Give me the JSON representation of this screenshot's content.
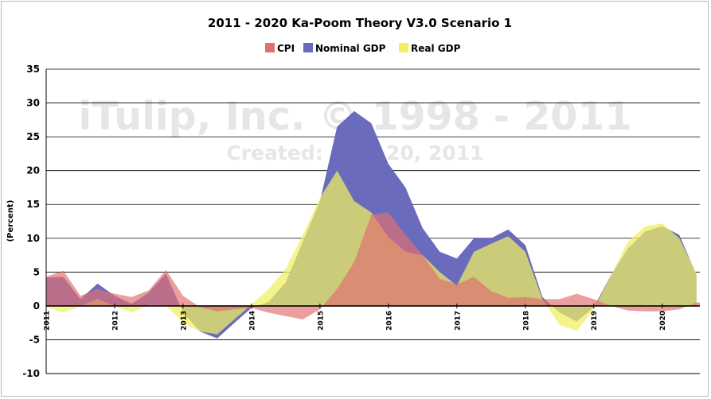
{
  "chart_data": {
    "type": "area",
    "title": "2011 - 2020 Ka-Poom Theory V3.0 Scenario 1",
    "ylabel": "(Percent)",
    "xlabel": "",
    "ylim": [
      -10,
      35
    ],
    "yticks": [
      "35",
      "30",
      "25",
      "20",
      "15",
      "10",
      "5",
      "0",
      "-5",
      "-10"
    ],
    "xlim": [
      2011,
      2020.55
    ],
    "xticks": [
      "2011",
      "2012",
      "2013",
      "2014",
      "2015",
      "2016",
      "2017",
      "2018",
      "2019",
      "2020"
    ],
    "grid": true,
    "legend_position": "top-center",
    "watermark": [
      "iTulip, Inc. © 1998 - 2011",
      "Created: June 20, 2011"
    ],
    "series": [
      {
        "name": "Nominal GDP",
        "color": "#6b6bbd",
        "points": [
          [
            2011.0,
            4.2
          ],
          [
            2011.25,
            4.3
          ],
          [
            2011.5,
            1.0
          ],
          [
            2011.75,
            3.3
          ],
          [
            2012.0,
            1.5
          ],
          [
            2012.25,
            0.3
          ],
          [
            2012.5,
            2.0
          ],
          [
            2012.75,
            4.8
          ],
          [
            2013.0,
            -1.0
          ],
          [
            2013.25,
            -3.8
          ],
          [
            2013.5,
            -4.8
          ],
          [
            2013.75,
            -2.5
          ],
          [
            2014.0,
            -0.3
          ],
          [
            2014.25,
            0.6
          ],
          [
            2014.5,
            3.5
          ],
          [
            2014.75,
            9.5
          ],
          [
            2015.0,
            15.5
          ],
          [
            2015.25,
            26.5
          ],
          [
            2015.5,
            28.8
          ],
          [
            2015.75,
            27.0
          ],
          [
            2016.0,
            21.0
          ],
          [
            2016.25,
            17.5
          ],
          [
            2016.5,
            11.5
          ],
          [
            2016.75,
            8.0
          ],
          [
            2017.0,
            7.0
          ],
          [
            2017.25,
            10.0
          ],
          [
            2017.5,
            10.0
          ],
          [
            2017.75,
            11.3
          ],
          [
            2018.0,
            9.0
          ],
          [
            2018.25,
            1.3
          ],
          [
            2018.5,
            -1.0
          ],
          [
            2018.75,
            -2.3
          ],
          [
            2019.0,
            -0.2
          ],
          [
            2019.25,
            4.5
          ],
          [
            2019.5,
            8.5
          ],
          [
            2019.75,
            11.0
          ],
          [
            2020.0,
            11.8
          ],
          [
            2020.25,
            10.5
          ],
          [
            2020.5,
            4.6
          ]
        ]
      },
      {
        "name": "Real GDP",
        "color": "#f0f060",
        "points": [
          [
            2011.0,
            -0.1
          ],
          [
            2011.25,
            -1.0
          ],
          [
            2011.5,
            0.0
          ],
          [
            2011.75,
            1.0
          ],
          [
            2012.0,
            0.0
          ],
          [
            2012.25,
            -1.0
          ],
          [
            2012.5,
            0.2
          ],
          [
            2012.75,
            0.1
          ],
          [
            2013.0,
            -2.5
          ],
          [
            2013.25,
            -3.8
          ],
          [
            2013.5,
            -4.2
          ],
          [
            2013.75,
            -2.0
          ],
          [
            2014.0,
            0.2
          ],
          [
            2014.25,
            2.5
          ],
          [
            2014.5,
            5.5
          ],
          [
            2014.75,
            10.5
          ],
          [
            2015.0,
            16.0
          ],
          [
            2015.25,
            20.0
          ],
          [
            2015.5,
            15.5
          ],
          [
            2015.75,
            13.8
          ],
          [
            2016.0,
            10.2
          ],
          [
            2016.25,
            8.0
          ],
          [
            2016.5,
            7.5
          ],
          [
            2016.75,
            5.0
          ],
          [
            2017.0,
            3.0
          ],
          [
            2017.25,
            8.0
          ],
          [
            2017.5,
            9.2
          ],
          [
            2017.75,
            10.3
          ],
          [
            2018.0,
            8.0
          ],
          [
            2018.25,
            1.0
          ],
          [
            2018.5,
            -2.8
          ],
          [
            2018.75,
            -3.7
          ],
          [
            2019.0,
            -0.5
          ],
          [
            2019.25,
            4.5
          ],
          [
            2019.5,
            9.5
          ],
          [
            2019.75,
            11.8
          ],
          [
            2020.0,
            12.2
          ],
          [
            2020.25,
            10.0
          ],
          [
            2020.5,
            4.8
          ]
        ]
      },
      {
        "name": "CPI",
        "color": "#e07070",
        "points": [
          [
            2011.0,
            4.3
          ],
          [
            2011.25,
            5.2
          ],
          [
            2011.5,
            1.5
          ],
          [
            2011.75,
            2.5
          ],
          [
            2012.0,
            1.8
          ],
          [
            2012.25,
            1.3
          ],
          [
            2012.5,
            2.3
          ],
          [
            2012.75,
            5.3
          ],
          [
            2013.0,
            1.5
          ],
          [
            2013.25,
            -0.2
          ],
          [
            2013.5,
            -0.8
          ],
          [
            2013.75,
            -0.5
          ],
          [
            2014.0,
            -0.3
          ],
          [
            2014.25,
            -1.0
          ],
          [
            2014.5,
            -1.5
          ],
          [
            2014.75,
            -2.0
          ],
          [
            2015.0,
            -0.5
          ],
          [
            2015.25,
            2.5
          ],
          [
            2015.5,
            6.5
          ],
          [
            2015.75,
            13.5
          ],
          [
            2016.0,
            13.8
          ],
          [
            2016.25,
            10.5
          ],
          [
            2016.5,
            7.5
          ],
          [
            2016.75,
            4.0
          ],
          [
            2017.0,
            3.2
          ],
          [
            2017.25,
            4.3
          ],
          [
            2017.5,
            2.2
          ],
          [
            2017.75,
            1.2
          ],
          [
            2018.0,
            1.3
          ],
          [
            2018.25,
            1.0
          ],
          [
            2018.5,
            1.0
          ],
          [
            2018.75,
            1.8
          ],
          [
            2019.0,
            1.0
          ],
          [
            2019.25,
            0.0
          ],
          [
            2019.5,
            -0.7
          ],
          [
            2019.75,
            -0.8
          ],
          [
            2020.0,
            -0.8
          ],
          [
            2020.25,
            -0.5
          ],
          [
            2020.5,
            0.5
          ],
          [
            2020.55,
            0.5
          ]
        ]
      }
    ],
    "legend": [
      {
        "name": "CPI",
        "color": "#e07070"
      },
      {
        "name": "Nominal GDP",
        "color": "#6b6bbd"
      },
      {
        "name": "Real GDP",
        "color": "#f0f060"
      }
    ]
  }
}
